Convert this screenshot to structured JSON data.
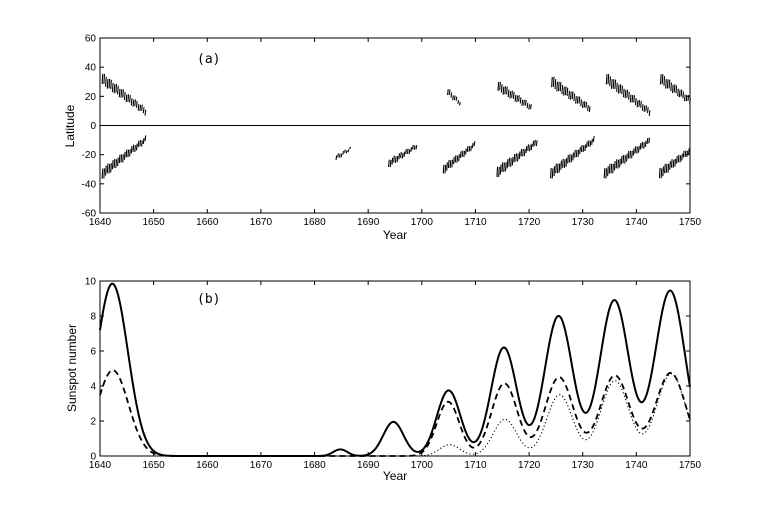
{
  "chart_data": [
    {
      "type": "scatter",
      "panel_label": "(a)",
      "xlabel": "Year",
      "ylabel": "Latitude",
      "xlim": [
        1640,
        1750
      ],
      "ylim": [
        -60,
        60
      ],
      "xticks": [
        1640,
        1650,
        1660,
        1670,
        1680,
        1690,
        1700,
        1710,
        1720,
        1730,
        1740,
        1750
      ],
      "yticks": [
        -60,
        -40,
        -20,
        0,
        20,
        40,
        60
      ],
      "zero_line": true,
      "mark_style": "short vertical dashes (butterfly diagram)",
      "color": "#000000",
      "wings": [
        {
          "hemisphere": "north",
          "t0": 1640.4,
          "t1": 1648.6,
          "lat_start": 32,
          "lat_end": 9,
          "spread": 3.5
        },
        {
          "hemisphere": "south",
          "t0": 1640.4,
          "t1": 1648.6,
          "lat_start": -33,
          "lat_end": -9,
          "spread": 3.5
        },
        {
          "hemisphere": "south",
          "t0": 1684.0,
          "t1": 1686.6,
          "lat_start": -22,
          "lat_end": -16,
          "spread": 1.5
        },
        {
          "hemisphere": "south",
          "t0": 1693.8,
          "t1": 1699.0,
          "lat_start": -26,
          "lat_end": -14,
          "spread": 2.5
        },
        {
          "hemisphere": "north",
          "t0": 1704.8,
          "t1": 1707.2,
          "lat_start": 23,
          "lat_end": 15,
          "spread": 2.0
        },
        {
          "hemisphere": "south",
          "t0": 1704.0,
          "t1": 1709.8,
          "lat_start": -30,
          "lat_end": -13,
          "spread": 3.0
        },
        {
          "hemisphere": "north",
          "t0": 1714.2,
          "t1": 1720.5,
          "lat_start": 27,
          "lat_end": 12,
          "spread": 3.0
        },
        {
          "hemisphere": "south",
          "t0": 1714.0,
          "t1": 1721.5,
          "lat_start": -32,
          "lat_end": -11,
          "spread": 3.5
        },
        {
          "hemisphere": "north",
          "t0": 1724.2,
          "t1": 1731.5,
          "lat_start": 30,
          "lat_end": 11,
          "spread": 3.5
        },
        {
          "hemisphere": "south",
          "t0": 1724.0,
          "t1": 1732.0,
          "lat_start": -33,
          "lat_end": -10,
          "spread": 3.5
        },
        {
          "hemisphere": "north",
          "t0": 1734.4,
          "t1": 1742.5,
          "lat_start": 32,
          "lat_end": 9,
          "spread": 3.5
        },
        {
          "hemisphere": "south",
          "t0": 1734.0,
          "t1": 1742.5,
          "lat_start": -33,
          "lat_end": -10,
          "spread": 3.5
        },
        {
          "hemisphere": "north",
          "t0": 1744.5,
          "t1": 1750.0,
          "lat_start": 32,
          "lat_end": 17,
          "spread": 3.5
        },
        {
          "hemisphere": "south",
          "t0": 1744.3,
          "t1": 1750.0,
          "lat_start": -33,
          "lat_end": -17,
          "spread": 3.5
        }
      ]
    },
    {
      "type": "line",
      "panel_label": "(b)",
      "xlabel": "Year",
      "ylabel": "Sunspot number",
      "xlim": [
        1640,
        1750
      ],
      "ylim": [
        0,
        10
      ],
      "xticks": [
        1640,
        1650,
        1660,
        1670,
        1680,
        1690,
        1700,
        1710,
        1720,
        1730,
        1740,
        1750
      ],
      "yticks": [
        0,
        2,
        4,
        6,
        8,
        10
      ],
      "series": [
        {
          "style": "solid",
          "color": "#000000",
          "peaks": [
            {
              "year": 1642.3,
              "value": 9.85,
              "width": 2.9
            },
            {
              "year": 1684.8,
              "value": 0.38,
              "width": 1.3
            },
            {
              "year": 1694.7,
              "value": 1.95,
              "width": 1.9
            },
            {
              "year": 1705.0,
              "value": 3.75,
              "width": 2.2
            },
            {
              "year": 1715.3,
              "value": 6.2,
              "width": 2.4
            },
            {
              "year": 1725.5,
              "value": 8.0,
              "width": 2.6
            },
            {
              "year": 1735.9,
              "value": 8.9,
              "width": 2.7
            },
            {
              "year": 1746.3,
              "value": 9.45,
              "width": 2.8
            }
          ]
        },
        {
          "style": "dashed",
          "color": "#000000",
          "peaks": [
            {
              "year": 1642.4,
              "value": 4.9,
              "width": 2.9
            },
            {
              "year": 1704.9,
              "value": 3.1,
              "width": 2.1
            },
            {
              "year": 1715.4,
              "value": 4.15,
              "width": 2.4
            },
            {
              "year": 1725.6,
              "value": 4.5,
              "width": 2.6
            },
            {
              "year": 1736.0,
              "value": 4.6,
              "width": 2.7
            },
            {
              "year": 1746.4,
              "value": 4.75,
              "width": 2.8
            }
          ]
        },
        {
          "style": "dotted",
          "color": "#000000",
          "peaks": [
            {
              "year": 1705.2,
              "value": 0.65,
              "width": 1.9
            },
            {
              "year": 1715.5,
              "value": 2.1,
              "width": 2.2
            },
            {
              "year": 1725.7,
              "value": 3.5,
              "width": 2.4
            },
            {
              "year": 1736.0,
              "value": 4.3,
              "width": 2.6
            },
            {
              "year": 1746.5,
              "value": 4.7,
              "width": 2.7
            }
          ]
        }
      ]
    }
  ]
}
